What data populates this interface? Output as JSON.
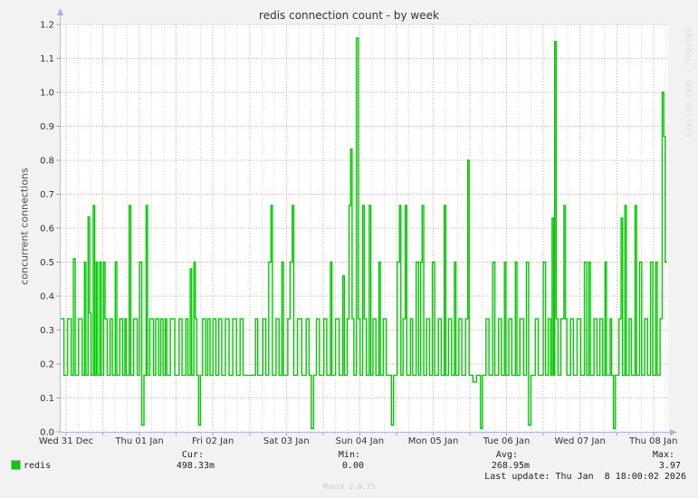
{
  "title": "redis connection count - by week",
  "watermark": "Munin 2.0.75",
  "rrd_credit": "RRDTOOL / TOBI OETIKER",
  "legend": {
    "series_label": "redis",
    "cur_header": "Cur:",
    "min_header": "Min:",
    "avg_header": "Avg:",
    "max_header": "Max:",
    "cur_value": "498.33m",
    "min_value": "0.00",
    "avg_value": "268.95m",
    "max_value": "3.97",
    "last_update": "Last update: Thu Jan  8 18:00:02 2026"
  },
  "colors": {
    "line_green": "#00cc00",
    "major_grid_red": "#e99fa0",
    "minor_grid_gray": "#d4d4d4",
    "axis_lavender": "#b9b9dd",
    "arrow_lavender": "#aeaee2",
    "tick_red": "#e08888",
    "tick_gray": "#c5c5c5",
    "plot_bg": "#ffffff",
    "page_bg": "#f2f2f2",
    "text": "#333333"
  },
  "chart_data": {
    "type": "line",
    "title": "redis connection count - by week",
    "xlabel": "",
    "ylabel": "concurrent connections",
    "ylim": [
      0.0,
      1.2
    ],
    "ytick_step": 0.1,
    "ytick_labels": [
      "0.0",
      "0.1",
      "0.2",
      "0.3",
      "0.4",
      "0.5",
      "0.6",
      "0.7",
      "0.8",
      "0.9",
      "1.0",
      "1.1",
      "1.2"
    ],
    "x_day_labels": [
      "Wed 31 Dec",
      "Thu 01 Jan",
      "Fri 02 Jan",
      "Sat 03 Jan",
      "Sun 04 Jan",
      "Mon 05 Jan",
      "Tue 06 Jan",
      "Wed 07 Jan",
      "Thu 08 Jan"
    ],
    "x_range_days": [
      -0.074,
      8.186
    ],
    "grid": {
      "minor_intervals_per_day": 6,
      "major_intervals_per_day": 2,
      "grid_on": true,
      "legend_position": "bottom"
    },
    "series": [
      {
        "name": "redis",
        "color": "#00cc00",
        "interpolation": "step-after",
        "points": [
          [
            -0.074,
            0.333
          ],
          [
            -0.03,
            0.167
          ],
          [
            0.02,
            0.333
          ],
          [
            0.07,
            0.167
          ],
          [
            0.1,
            0.51
          ],
          [
            0.125,
            0.167
          ],
          [
            0.17,
            0.333
          ],
          [
            0.22,
            0.167
          ],
          [
            0.25,
            0.5
          ],
          [
            0.27,
            0.167
          ],
          [
            0.3,
            0.633
          ],
          [
            0.32,
            0.35
          ],
          [
            0.34,
            0.167
          ],
          [
            0.37,
            0.667
          ],
          [
            0.39,
            0.167
          ],
          [
            0.41,
            0.5
          ],
          [
            0.43,
            0.167
          ],
          [
            0.46,
            0.5
          ],
          [
            0.48,
            0.167
          ],
          [
            0.51,
            0.5
          ],
          [
            0.53,
            0.333
          ],
          [
            0.56,
            0.167
          ],
          [
            0.6,
            0.333
          ],
          [
            0.63,
            0.167
          ],
          [
            0.67,
            0.5
          ],
          [
            0.69,
            0.167
          ],
          [
            0.73,
            0.333
          ],
          [
            0.77,
            0.167
          ],
          [
            0.8,
            0.333
          ],
          [
            0.82,
            0.167
          ],
          [
            0.86,
            0.667
          ],
          [
            0.88,
            0.167
          ],
          [
            0.92,
            0.333
          ],
          [
            0.97,
            0.167
          ],
          [
            1.0,
            0.5
          ],
          [
            1.03,
            0.02
          ],
          [
            1.06,
            0.167
          ],
          [
            1.09,
            0.667
          ],
          [
            1.11,
            0.167
          ],
          [
            1.14,
            0.333
          ],
          [
            1.19,
            0.167
          ],
          [
            1.22,
            0.333
          ],
          [
            1.26,
            0.167
          ],
          [
            1.29,
            0.333
          ],
          [
            1.32,
            0.167
          ],
          [
            1.35,
            0.333
          ],
          [
            1.37,
            0.167
          ],
          [
            1.42,
            0.333
          ],
          [
            1.48,
            0.167
          ],
          [
            1.54,
            0.333
          ],
          [
            1.58,
            0.167
          ],
          [
            1.63,
            0.333
          ],
          [
            1.66,
            0.167
          ],
          [
            1.69,
            0.48
          ],
          [
            1.71,
            0.167
          ],
          [
            1.74,
            0.5
          ],
          [
            1.76,
            0.333
          ],
          [
            1.78,
            0.167
          ],
          [
            1.805,
            0.02
          ],
          [
            1.83,
            0.167
          ],
          [
            1.86,
            0.333
          ],
          [
            1.9,
            0.167
          ],
          [
            1.93,
            0.333
          ],
          [
            1.96,
            0.167
          ],
          [
            2.0,
            0.333
          ],
          [
            2.04,
            0.167
          ],
          [
            2.08,
            0.333
          ],
          [
            2.12,
            0.167
          ],
          [
            2.17,
            0.333
          ],
          [
            2.22,
            0.167
          ],
          [
            2.27,
            0.333
          ],
          [
            2.32,
            0.167
          ],
          [
            2.37,
            0.333
          ],
          [
            2.41,
            0.167
          ],
          [
            2.58,
            0.333
          ],
          [
            2.61,
            0.167
          ],
          [
            2.68,
            0.333
          ],
          [
            2.72,
            0.167
          ],
          [
            2.76,
            0.5
          ],
          [
            2.79,
            0.667
          ],
          [
            2.81,
            0.167
          ],
          [
            2.86,
            0.333
          ],
          [
            2.9,
            0.167
          ],
          [
            2.94,
            0.5
          ],
          [
            2.96,
            0.167
          ],
          [
            3.02,
            0.333
          ],
          [
            3.05,
            0.5
          ],
          [
            3.08,
            0.667
          ],
          [
            3.1,
            0.167
          ],
          [
            3.15,
            0.333
          ],
          [
            3.21,
            0.167
          ],
          [
            3.27,
            0.333
          ],
          [
            3.31,
            0.167
          ],
          [
            3.34,
            0.01
          ],
          [
            3.37,
            0.167
          ],
          [
            3.41,
            0.333
          ],
          [
            3.45,
            0.167
          ],
          [
            3.51,
            0.333
          ],
          [
            3.55,
            0.167
          ],
          [
            3.6,
            0.5
          ],
          [
            3.62,
            0.167
          ],
          [
            3.67,
            0.333
          ],
          [
            3.72,
            0.167
          ],
          [
            3.77,
            0.46
          ],
          [
            3.79,
            0.167
          ],
          [
            3.83,
            0.333
          ],
          [
            3.855,
            0.667
          ],
          [
            3.875,
            0.833
          ],
          [
            3.895,
            0.333
          ],
          [
            3.92,
            0.167
          ],
          [
            3.955,
            1.16
          ],
          [
            3.98,
            0.333
          ],
          [
            4.005,
            0.167
          ],
          [
            4.04,
            0.667
          ],
          [
            4.06,
            0.333
          ],
          [
            4.09,
            0.167
          ],
          [
            4.13,
            0.667
          ],
          [
            4.15,
            0.167
          ],
          [
            4.18,
            0.333
          ],
          [
            4.22,
            0.167
          ],
          [
            4.26,
            0.5
          ],
          [
            4.28,
            0.167
          ],
          [
            4.32,
            0.333
          ],
          [
            4.36,
            0.167
          ],
          [
            4.43,
            0.02
          ],
          [
            4.46,
            0.167
          ],
          [
            4.51,
            0.5
          ],
          [
            4.54,
            0.667
          ],
          [
            4.56,
            0.167
          ],
          [
            4.59,
            0.333
          ],
          [
            4.62,
            0.667
          ],
          [
            4.64,
            0.167
          ],
          [
            4.69,
            0.333
          ],
          [
            4.72,
            0.167
          ],
          [
            4.77,
            0.5
          ],
          [
            4.8,
            0.167
          ],
          [
            4.83,
            0.5
          ],
          [
            4.85,
            0.667
          ],
          [
            4.87,
            0.167
          ],
          [
            4.91,
            0.333
          ],
          [
            4.95,
            0.167
          ],
          [
            4.99,
            0.5
          ],
          [
            5.02,
            0.167
          ],
          [
            5.07,
            0.333
          ],
          [
            5.11,
            0.167
          ],
          [
            5.15,
            0.667
          ],
          [
            5.17,
            0.167
          ],
          [
            5.21,
            0.333
          ],
          [
            5.25,
            0.167
          ],
          [
            5.29,
            0.5
          ],
          [
            5.31,
            0.167
          ],
          [
            5.35,
            0.333
          ],
          [
            5.39,
            0.167
          ],
          [
            5.44,
            0.333
          ],
          [
            5.47,
            0.8
          ],
          [
            5.49,
            0.167
          ],
          [
            5.54,
            0.147
          ],
          [
            5.59,
            0.167
          ],
          [
            5.645,
            0.01
          ],
          [
            5.67,
            0.167
          ],
          [
            5.72,
            0.333
          ],
          [
            5.76,
            0.167
          ],
          [
            5.81,
            0.5
          ],
          [
            5.84,
            0.167
          ],
          [
            5.89,
            0.333
          ],
          [
            5.93,
            0.167
          ],
          [
            5.97,
            0.5
          ],
          [
            5.99,
            0.167
          ],
          [
            6.03,
            0.333
          ],
          [
            6.07,
            0.167
          ],
          [
            6.12,
            0.5
          ],
          [
            6.14,
            0.167
          ],
          [
            6.18,
            0.333
          ],
          [
            6.23,
            0.167
          ],
          [
            6.27,
            0.5
          ],
          [
            6.3,
            0.02
          ],
          [
            6.33,
            0.167
          ],
          [
            6.39,
            0.333
          ],
          [
            6.43,
            0.167
          ],
          [
            6.5,
            0.5
          ],
          [
            6.53,
            0.167
          ],
          [
            6.57,
            0.333
          ],
          [
            6.6,
            0.167
          ],
          [
            6.62,
            0.63
          ],
          [
            6.64,
            0.167
          ],
          [
            6.655,
            1.15
          ],
          [
            6.675,
            0.333
          ],
          [
            6.7,
            0.167
          ],
          [
            6.74,
            0.333
          ],
          [
            6.78,
            0.667
          ],
          [
            6.8,
            0.333
          ],
          [
            6.82,
            0.167
          ],
          [
            6.87,
            0.333
          ],
          [
            6.91,
            0.167
          ],
          [
            6.96,
            0.333
          ],
          [
            7.01,
            0.167
          ],
          [
            7.06,
            0.5
          ],
          [
            7.09,
            0.167
          ],
          [
            7.12,
            0.5
          ],
          [
            7.14,
            0.167
          ],
          [
            7.19,
            0.333
          ],
          [
            7.23,
            0.167
          ],
          [
            7.27,
            0.333
          ],
          [
            7.31,
            0.167
          ],
          [
            7.34,
            0.5
          ],
          [
            7.36,
            0.167
          ],
          [
            7.41,
            0.333
          ],
          [
            7.43,
            0.167
          ],
          [
            7.455,
            0.01
          ],
          [
            7.48,
            0.167
          ],
          [
            7.53,
            0.333
          ],
          [
            7.56,
            0.63
          ],
          [
            7.58,
            0.167
          ],
          [
            7.61,
            0.667
          ],
          [
            7.63,
            0.167
          ],
          [
            7.67,
            0.333
          ],
          [
            7.7,
            0.167
          ],
          [
            7.75,
            0.667
          ],
          [
            7.77,
            0.167
          ],
          [
            7.81,
            0.5
          ],
          [
            7.84,
            0.167
          ],
          [
            7.88,
            0.333
          ],
          [
            7.92,
            0.167
          ],
          [
            7.96,
            0.5
          ],
          [
            7.99,
            0.167
          ],
          [
            8.03,
            0.5
          ],
          [
            8.05,
            0.167
          ],
          [
            8.09,
            0.333
          ],
          [
            8.12,
            1.0
          ],
          [
            8.14,
            0.87
          ],
          [
            8.16,
            0.5
          ],
          [
            8.186,
            0.5
          ]
        ]
      }
    ],
    "stats": {
      "cur": "498.33m",
      "min": "0.00",
      "avg": "268.95m",
      "max": "3.97"
    }
  }
}
